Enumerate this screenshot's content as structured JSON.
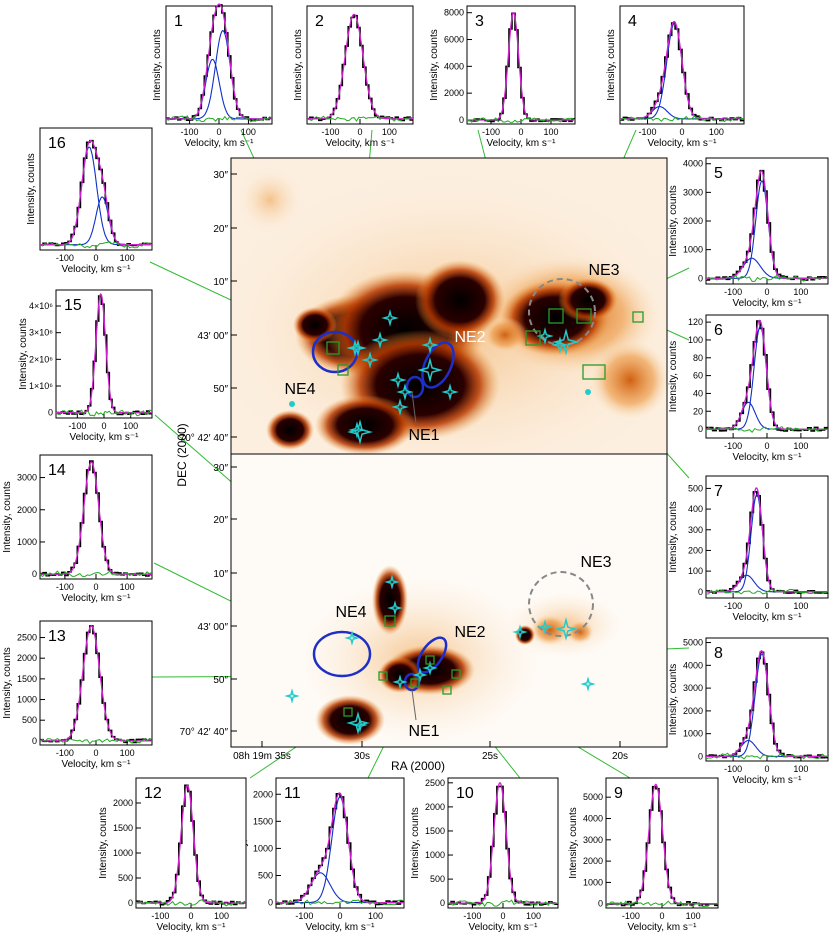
{
  "colors": {
    "spectrum": "#000000",
    "fit_total": "#d21fd2",
    "component": "#1030c8",
    "residual": "#22aa22",
    "connector": "#33bb33",
    "map_marker": "#22cccc",
    "region_ellipse": "#1e2fc8",
    "ne3_circle": "#888888",
    "aperture_box": "#2a9a2a"
  },
  "maps": {
    "dec_label": "DEC (2000)",
    "ra_label": "RA (2000)",
    "dec_ticks_top": [
      "30″",
      "20″",
      "10″",
      "43′ 00″",
      "50″",
      "70° 42′ 40″"
    ],
    "dec_ticks_bottom": [
      "30″",
      "20″",
      "10″",
      "43′ 00″",
      "50″",
      "70° 42′ 40″"
    ],
    "ra_ticks": [
      "08h 19m 35s",
      "30s",
      "25s",
      "20s"
    ],
    "regions_top": [
      "NE1",
      "NE2",
      "NE3",
      "NE4"
    ],
    "regions_bottom": [
      "NE1",
      "NE2",
      "NE3",
      "NE4"
    ]
  },
  "axis_text": {
    "ylabel": "Intensity, counts",
    "xlabel": "Velocity, km s⁻¹"
  },
  "chart_data": [
    {
      "type": "line",
      "panel": "1",
      "xlim": [
        -180,
        180
      ],
      "xticks": [
        -100,
        0,
        100
      ],
      "ylim": [
        -0.05,
        1.1
      ],
      "yticks": [],
      "peak": 1.0,
      "components": [
        {
          "amp": 0.58,
          "center": -22,
          "sigma": 23
        },
        {
          "amp": 0.86,
          "center": 13,
          "sigma": 25
        }
      ]
    },
    {
      "type": "line",
      "panel": "2",
      "xlim": [
        -180,
        180
      ],
      "xticks": [
        -100,
        0,
        100
      ],
      "ylim": [
        -0.05,
        1.08
      ],
      "yticks": [],
      "peak": 1.0,
      "components": [
        {
          "amp": 1.0,
          "center": -20,
          "sigma": 30
        }
      ]
    },
    {
      "type": "line",
      "panel": "3",
      "xlim": [
        -180,
        180
      ],
      "xticks": [
        -100,
        0,
        100
      ],
      "ylim": [
        -300,
        8500
      ],
      "yticks": [
        0,
        2000,
        4000,
        6000,
        8000
      ],
      "peak": 8000,
      "components": [
        {
          "amp": 8000,
          "center": -25,
          "sigma": 17
        }
      ]
    },
    {
      "type": "line",
      "panel": "4",
      "xlim": [
        -180,
        180
      ],
      "xticks": [
        -100,
        0,
        100
      ],
      "ylim": [
        -0.05,
        1.1
      ],
      "yticks": [],
      "peak": 1.0,
      "components": [
        {
          "amp": 0.12,
          "center": -65,
          "sigma": 22
        },
        {
          "amp": 0.93,
          "center": -22,
          "sigma": 22
        }
      ]
    },
    {
      "type": "line",
      "panel": "5",
      "xlim": [
        -180,
        180
      ],
      "xticks": [
        -100,
        0,
        100
      ],
      "ylim": [
        -200,
        4200
      ],
      "yticks": [
        0,
        1000,
        2000,
        3000,
        4000
      ],
      "peak": 4000,
      "components": [
        {
          "amp": 700,
          "center": -45,
          "sigma": 25
        },
        {
          "amp": 3400,
          "center": -15,
          "sigma": 18
        }
      ]
    },
    {
      "type": "line",
      "panel": "6",
      "xlim": [
        -180,
        180
      ],
      "xticks": [
        -100,
        0,
        100
      ],
      "ylim": [
        -10,
        128
      ],
      "yticks": [
        0,
        20,
        40,
        60,
        80,
        100,
        120
      ],
      "peak": 122,
      "components": [
        {
          "amp": 30,
          "center": -55,
          "sigma": 20
        },
        {
          "amp": 115,
          "center": -20,
          "sigma": 18
        }
      ]
    },
    {
      "type": "line",
      "panel": "7",
      "xlim": [
        -180,
        180
      ],
      "xticks": [
        -100,
        0,
        100
      ],
      "ylim": [
        -30,
        560
      ],
      "yticks": [
        0,
        100,
        200,
        300,
        400,
        500
      ],
      "peak": 530,
      "components": [
        {
          "amp": 80,
          "center": -60,
          "sigma": 22
        },
        {
          "amp": 470,
          "center": -30,
          "sigma": 17
        }
      ]
    },
    {
      "type": "line",
      "panel": "8",
      "xlim": [
        -180,
        180
      ],
      "xticks": [
        -100,
        0,
        100
      ],
      "ylim": [
        -200,
        5200
      ],
      "yticks": [
        0,
        1000,
        2000,
        3000,
        4000,
        5000
      ],
      "peak": 4950,
      "components": [
        {
          "amp": 700,
          "center": -55,
          "sigma": 22
        },
        {
          "amp": 4500,
          "center": -15,
          "sigma": 20
        }
      ]
    },
    {
      "type": "line",
      "panel": "9",
      "xlim": [
        -180,
        180
      ],
      "xticks": [
        -100,
        0,
        100
      ],
      "ylim": [
        -200,
        5900
      ],
      "yticks": [
        0,
        1000,
        2000,
        3000,
        4000,
        5000
      ],
      "peak": 5600,
      "components": [
        {
          "amp": 5600,
          "center": -20,
          "sigma": 22
        }
      ]
    },
    {
      "type": "line",
      "panel": "10",
      "xlim": [
        -180,
        180
      ],
      "xticks": [
        -100,
        0,
        100
      ],
      "ylim": [
        -100,
        2600
      ],
      "yticks": [
        0,
        500,
        1000,
        1500,
        2000,
        2500
      ],
      "peak": 2500,
      "components": [
        {
          "amp": 2500,
          "center": -10,
          "sigma": 20
        }
      ]
    },
    {
      "type": "line",
      "panel": "11",
      "xlim": [
        -180,
        180
      ],
      "xticks": [
        -100,
        0,
        100
      ],
      "ylim": [
        -100,
        2300
      ],
      "yticks": [
        0,
        500,
        1000,
        1500,
        2000
      ],
      "peak": 2200,
      "components": [
        {
          "amp": 550,
          "center": -55,
          "sigma": 27
        },
        {
          "amp": 1950,
          "center": 0,
          "sigma": 23
        }
      ]
    },
    {
      "type": "line",
      "panel": "12",
      "xlim": [
        -180,
        180
      ],
      "xticks": [
        -100,
        0,
        100
      ],
      "ylim": [
        -100,
        2500
      ],
      "yticks": [
        0,
        500,
        1000,
        1500,
        2000
      ],
      "peak": 2350,
      "components": [
        {
          "amp": 2350,
          "center": -12,
          "sigma": 20
        }
      ]
    },
    {
      "type": "line",
      "panel": "13",
      "xlim": [
        -180,
        180
      ],
      "xticks": [
        -100,
        0,
        100
      ],
      "ylim": [
        -100,
        2900
      ],
      "yticks": [
        0,
        500,
        1000,
        1500,
        2000,
        2500
      ],
      "peak": 2780,
      "components": [
        {
          "amp": 2780,
          "center": -15,
          "sigma": 27
        }
      ]
    },
    {
      "type": "line",
      "panel": "14",
      "xlim": [
        -180,
        180
      ],
      "xticks": [
        -100,
        0,
        100
      ],
      "ylim": [
        -150,
        3700
      ],
      "yticks": [
        0,
        1000,
        2000,
        3000
      ],
      "peak": 3480,
      "components": [
        {
          "amp": 3480,
          "center": -15,
          "sigma": 24
        }
      ]
    },
    {
      "type": "line",
      "panel": "15",
      "xlim": [
        -180,
        180
      ],
      "xticks": [
        -100,
        0,
        100
      ],
      "ylim": [
        -0.2,
        4.6
      ],
      "yticks": [
        0,
        1,
        2,
        3,
        4
      ],
      "ytick_labels": [
        "0",
        "1×10⁶",
        "2×10⁶",
        "3×10⁶",
        "4×10⁶"
      ],
      "peak": 4.45,
      "components": [
        {
          "amp": 4.45,
          "center": -12,
          "sigma": 18
        }
      ]
    },
    {
      "type": "line",
      "panel": "16",
      "xlim": [
        -180,
        180
      ],
      "xticks": [
        -100,
        0,
        100
      ],
      "ylim": [
        -0.05,
        1.1
      ],
      "yticks": [],
      "peak": 1.0,
      "components": [
        {
          "amp": 0.92,
          "center": -22,
          "sigma": 24
        },
        {
          "amp": 0.45,
          "center": 20,
          "sigma": 20
        }
      ]
    }
  ]
}
